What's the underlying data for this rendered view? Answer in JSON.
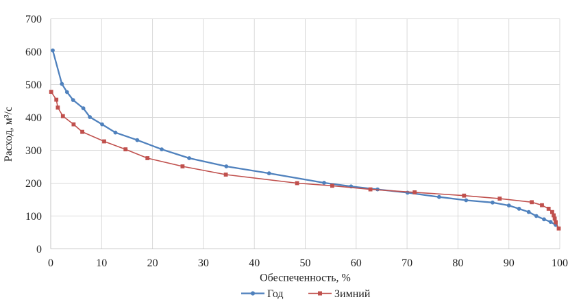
{
  "chart_data": {
    "type": "line",
    "title": "",
    "xlabel": "Обеспеченность, %",
    "ylabel": "Расход, м³/с",
    "xlim": [
      0,
      100
    ],
    "ylim": [
      0,
      700
    ],
    "x_ticks": [
      0,
      10,
      20,
      30,
      40,
      50,
      60,
      70,
      80,
      90,
      100
    ],
    "y_ticks": [
      0,
      100,
      200,
      300,
      400,
      500,
      600,
      700
    ],
    "grid": true,
    "legend_position": "bottom",
    "series": [
      {
        "name": "Год",
        "color": "#4F81BD",
        "marker": "circle",
        "line_width": 2.3,
        "points": [
          [
            0.4,
            604
          ],
          [
            2.2,
            502
          ],
          [
            3.2,
            477
          ],
          [
            4.4,
            453
          ],
          [
            6.4,
            428
          ],
          [
            7.7,
            401
          ],
          [
            10.1,
            379
          ],
          [
            12.7,
            354
          ],
          [
            17,
            331
          ],
          [
            21.8,
            303
          ],
          [
            27.2,
            276
          ],
          [
            34.5,
            251
          ],
          [
            42.9,
            230
          ],
          [
            53.7,
            201
          ],
          [
            59,
            190
          ],
          [
            64.2,
            181
          ],
          [
            70.1,
            171
          ],
          [
            76.3,
            158
          ],
          [
            81.6,
            148
          ],
          [
            86.8,
            141
          ],
          [
            90,
            132
          ],
          [
            92,
            122
          ],
          [
            93.9,
            112
          ],
          [
            95.4,
            100
          ],
          [
            96.9,
            90
          ],
          [
            98.2,
            82
          ],
          [
            99.2,
            73
          ]
        ]
      },
      {
        "name": "Зимний",
        "color": "#C0504D",
        "marker": "square",
        "line_width": 1.6,
        "points": [
          [
            0.1,
            478
          ],
          [
            1.1,
            454
          ],
          [
            1.4,
            430
          ],
          [
            2.4,
            404
          ],
          [
            4.5,
            379
          ],
          [
            6.2,
            356
          ],
          [
            10.5,
            327
          ],
          [
            14.7,
            303
          ],
          [
            19,
            276
          ],
          [
            25.9,
            251
          ],
          [
            34.4,
            226
          ],
          [
            48.4,
            200
          ],
          [
            55.3,
            192
          ],
          [
            62.8,
            181
          ],
          [
            71.5,
            172
          ],
          [
            81.2,
            162
          ],
          [
            88.2,
            153
          ],
          [
            94.5,
            142
          ],
          [
            96.5,
            133
          ],
          [
            97.8,
            122
          ],
          [
            98.5,
            112
          ],
          [
            98.8,
            102
          ],
          [
            99,
            92
          ],
          [
            99.2,
            81
          ],
          [
            99.8,
            62
          ]
        ]
      }
    ]
  },
  "theme": {
    "background": "#FFFFFF",
    "grid_color": "#D9D9D9",
    "axis_color": "#C6C6C6",
    "text_color": "#1F1F1F"
  }
}
